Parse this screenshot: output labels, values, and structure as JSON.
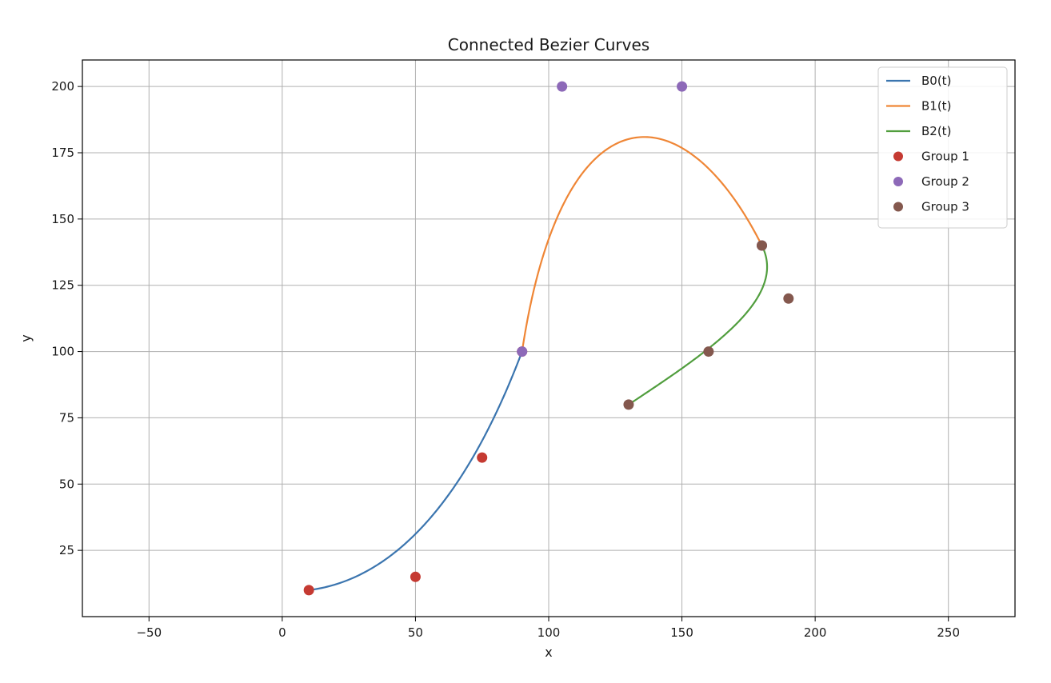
{
  "chart_data": {
    "type": "line",
    "title": "Connected Bezier Curves",
    "xlabel": "x",
    "ylabel": "y",
    "xlim": [
      -75,
      275
    ],
    "ylim": [
      0,
      210
    ],
    "xticks": [
      -50,
      0,
      50,
      100,
      150,
      200,
      250
    ],
    "yticks": [
      25,
      50,
      75,
      100,
      125,
      150,
      175,
      200
    ],
    "xtick_labels": [
      "−50",
      "0",
      "50",
      "100",
      "150",
      "200",
      "250"
    ],
    "ytick_labels": [
      "25",
      "50",
      "75",
      "100",
      "125",
      "150",
      "175",
      "200"
    ],
    "grid": true,
    "legend_position": "top-right",
    "series": [
      {
        "name": "B0(t)",
        "kind": "bezier",
        "control_points": [
          [
            10,
            10
          ],
          [
            50,
            15
          ],
          [
            75,
            60
          ],
          [
            90,
            100
          ]
        ],
        "color": "#3b75af"
      },
      {
        "name": "B1(t)",
        "kind": "bezier",
        "control_points": [
          [
            90,
            100
          ],
          [
            105,
            200
          ],
          [
            150,
            200
          ],
          [
            180,
            140
          ]
        ],
        "color": "#ef8636"
      },
      {
        "name": "B2(t)",
        "kind": "bezier",
        "control_points": [
          [
            180,
            140
          ],
          [
            190,
            120
          ],
          [
            160,
            100
          ],
          [
            130,
            80
          ]
        ],
        "color": "#519e3e"
      },
      {
        "name": "Group 1",
        "kind": "points",
        "points": [
          [
            10,
            10
          ],
          [
            50,
            15
          ],
          [
            75,
            60
          ],
          [
            90,
            100
          ]
        ],
        "color": "#c53a32"
      },
      {
        "name": "Group 2",
        "kind": "points",
        "points": [
          [
            90,
            100
          ],
          [
            105,
            200
          ],
          [
            150,
            200
          ],
          [
            180,
            140
          ]
        ],
        "color": "#8d69b8"
      },
      {
        "name": "Group 3",
        "kind": "points",
        "points": [
          [
            180,
            140
          ],
          [
            190,
            120
          ],
          [
            160,
            100
          ],
          [
            130,
            80
          ]
        ],
        "color": "#84584e"
      }
    ]
  }
}
